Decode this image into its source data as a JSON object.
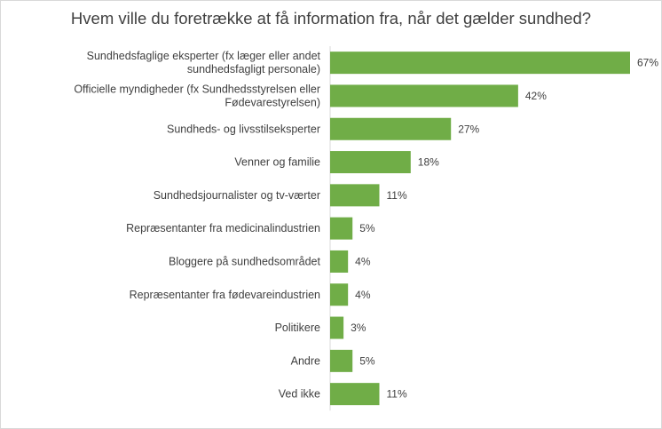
{
  "chart_data": {
    "type": "bar",
    "orientation": "horizontal",
    "title": "Hvem ville du foretrække at få information fra, når det gælder sundhed?",
    "xlabel": "",
    "ylabel": "",
    "categories": [
      "Sundhedsfaglige eksperter (fx læger eller andet sundhedsfagligt personale)",
      "Officielle myndigheder (fx Sundhedsstyrelsen eller Fødevarestyrelsen)",
      "Sundheds- og livsstilseksperter",
      "Venner og familie",
      "Sundhedsjournalister og tv-værter",
      "Repræsentanter fra medicinalindustrien",
      "Bloggere på sundhedsområdet",
      "Repræsentanter fra fødevareindustrien",
      "Politikere",
      "Andre",
      "Ved ikke"
    ],
    "values": [
      67,
      42,
      27,
      18,
      11,
      5,
      4,
      4,
      3,
      5,
      11
    ],
    "value_labels": [
      "67%",
      "42%",
      "27%",
      "18%",
      "11%",
      "5%",
      "4%",
      "4%",
      "3%",
      "5%",
      "11%"
    ],
    "xlim": [
      0,
      67
    ],
    "bar_color": "#70ad47",
    "axis_color": "#d9d9d9",
    "grid": false,
    "legend": "none"
  }
}
